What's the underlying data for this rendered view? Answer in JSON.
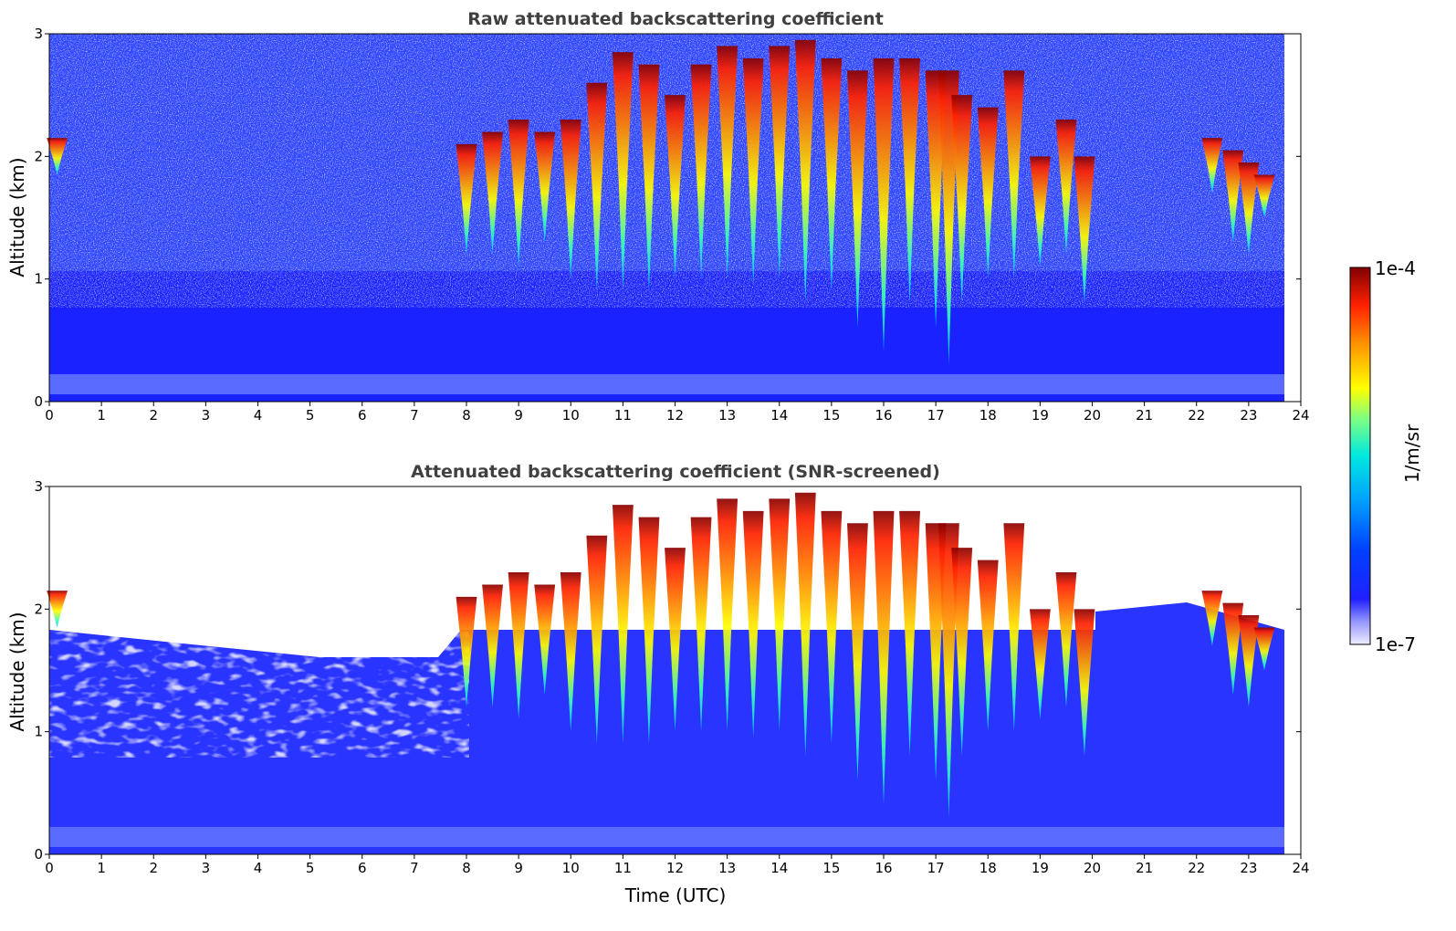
{
  "chart_data": [
    {
      "type": "heatmap",
      "title": "Raw attenuated backscattering coefficient",
      "xlabel": "",
      "ylabel": "Altitude (km)",
      "xlim": [
        0,
        24
      ],
      "ylim": [
        0,
        3
      ],
      "x_ticks": [
        "0",
        "1",
        "2",
        "3",
        "4",
        "5",
        "6",
        "7",
        "8",
        "9",
        "10",
        "11",
        "12",
        "13",
        "14",
        "15",
        "16",
        "17",
        "18",
        "19",
        "20",
        "21",
        "22",
        "23",
        "24"
      ],
      "y_ticks": [
        "0",
        "1",
        "2",
        "3"
      ],
      "data_end_hour": 23.65,
      "colormap": "jet",
      "color_scale": "log",
      "clouds": [
        {
          "t": 0.15,
          "base_km": 1.85,
          "top_km": 2.15
        },
        {
          "t": 8.0,
          "base_km": 1.2,
          "top_km": 2.1
        },
        {
          "t": 8.5,
          "base_km": 1.2,
          "top_km": 2.2
        },
        {
          "t": 9.0,
          "base_km": 1.1,
          "top_km": 2.3
        },
        {
          "t": 9.5,
          "base_km": 1.3,
          "top_km": 2.2
        },
        {
          "t": 10.0,
          "base_km": 1.0,
          "top_km": 2.3
        },
        {
          "t": 10.5,
          "base_km": 0.9,
          "top_km": 2.6
        },
        {
          "t": 11.0,
          "base_km": 0.9,
          "top_km": 2.85
        },
        {
          "t": 11.5,
          "base_km": 0.9,
          "top_km": 2.75
        },
        {
          "t": 12.0,
          "base_km": 1.0,
          "top_km": 2.5
        },
        {
          "t": 12.5,
          "base_km": 1.0,
          "top_km": 2.75
        },
        {
          "t": 13.0,
          "base_km": 1.0,
          "top_km": 2.9
        },
        {
          "t": 13.5,
          "base_km": 0.95,
          "top_km": 2.8
        },
        {
          "t": 14.0,
          "base_km": 1.0,
          "top_km": 2.9
        },
        {
          "t": 14.5,
          "base_km": 0.8,
          "top_km": 2.95
        },
        {
          "t": 15.0,
          "base_km": 0.9,
          "top_km": 2.8
        },
        {
          "t": 15.5,
          "base_km": 0.6,
          "top_km": 2.7
        },
        {
          "t": 16.0,
          "base_km": 0.4,
          "top_km": 2.8
        },
        {
          "t": 16.5,
          "base_km": 0.8,
          "top_km": 2.8
        },
        {
          "t": 17.0,
          "base_km": 0.6,
          "top_km": 2.7
        },
        {
          "t": 17.25,
          "base_km": 0.3,
          "top_km": 2.7
        },
        {
          "t": 17.5,
          "base_km": 0.8,
          "top_km": 2.5
        },
        {
          "t": 18.0,
          "base_km": 1.0,
          "top_km": 2.4
        },
        {
          "t": 18.5,
          "base_km": 1.0,
          "top_km": 2.7
        },
        {
          "t": 19.0,
          "base_km": 1.1,
          "top_km": 2.0
        },
        {
          "t": 19.5,
          "base_km": 1.2,
          "top_km": 2.3
        },
        {
          "t": 19.85,
          "base_km": 0.8,
          "top_km": 2.0
        },
        {
          "t": 22.3,
          "base_km": 1.7,
          "top_km": 2.15
        },
        {
          "t": 22.7,
          "base_km": 1.3,
          "top_km": 2.05
        },
        {
          "t": 23.0,
          "base_km": 1.2,
          "top_km": 1.95
        },
        {
          "t": 23.3,
          "base_km": 1.5,
          "top_km": 1.85
        }
      ]
    },
    {
      "type": "heatmap",
      "title": "Attenuated backscattering coefficient (SNR-screened)",
      "xlabel": "Time (UTC)",
      "ylabel": "Altitude (km)",
      "xlim": [
        0,
        24
      ],
      "ylim": [
        0,
        3
      ],
      "x_ticks": [
        "0",
        "1",
        "2",
        "3",
        "4",
        "5",
        "6",
        "7",
        "8",
        "9",
        "10",
        "11",
        "12",
        "13",
        "14",
        "15",
        "16",
        "17",
        "18",
        "19",
        "20",
        "21",
        "22",
        "23",
        "24"
      ],
      "y_ticks": [
        "0",
        "1",
        "2",
        "3"
      ],
      "data_end_hour": 23.65,
      "colormap": "jet",
      "color_scale": "log",
      "clouds": "same as panel 1"
    }
  ],
  "colorbar": {
    "label": "1/m/sr",
    "max_label": "1e-4",
    "min_label": "1e-7",
    "range": [
      1e-07,
      0.0001
    ],
    "colors": [
      "#eeeeff",
      "#c8c8ff",
      "#7878ff",
      "#0000ff",
      "#0050ff",
      "#00a0ff",
      "#00e0e0",
      "#40ffb0",
      "#a0ff60",
      "#ffff00",
      "#ffc000",
      "#ff8000",
      "#ff3000",
      "#dd0000",
      "#800000"
    ]
  }
}
